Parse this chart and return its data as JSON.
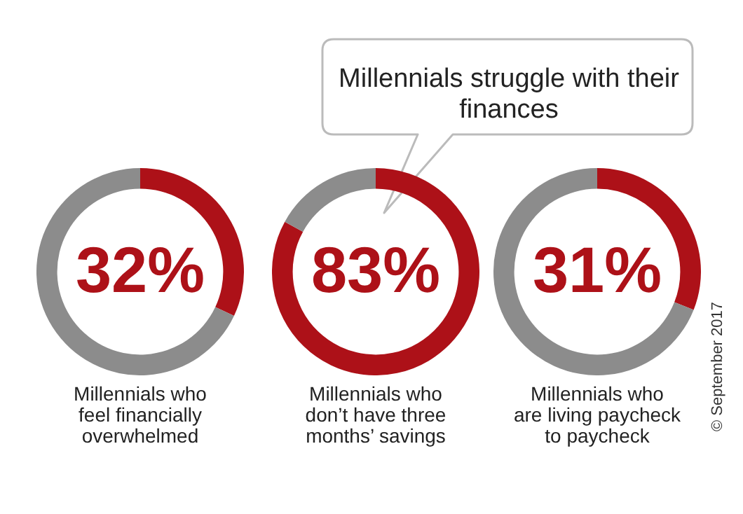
{
  "chart_data": [
    {
      "type": "other",
      "title": "Millennials struggle with their finances",
      "annotations": [
        "© September 2017"
      ]
    },
    {
      "type": "donut",
      "categories": [
        null,
        null
      ],
      "values": [
        32,
        68
      ],
      "colors": [
        "#ad1118",
        "#8c8c8c"
      ],
      "value_labels": [
        "32%",
        null
      ],
      "xlabel": "Millennials who\nfeel financially\noverwhelmed",
      "legend": false
    },
    {
      "type": "donut",
      "categories": [
        null,
        null
      ],
      "values": [
        83,
        17
      ],
      "colors": [
        "#ad1118",
        "#8c8c8c"
      ],
      "value_labels": [
        "83%",
        null
      ],
      "xlabel": "Millennials who\ndon’t have three\nmonths’ savings",
      "legend": false
    },
    {
      "type": "donut",
      "categories": [
        null,
        null
      ],
      "values": [
        31,
        69
      ],
      "colors": [
        "#ad1118",
        "#8c8c8c"
      ],
      "value_labels": [
        "31%",
        null
      ],
      "xlabel": "Millennials who\nare living paycheck\nto paycheck",
      "legend": false
    }
  ]
}
